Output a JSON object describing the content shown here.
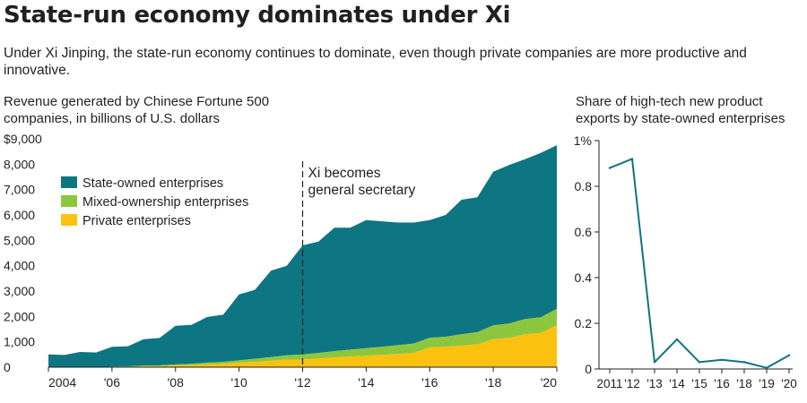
{
  "header": {
    "title": "State-run economy dominates under Xi",
    "subtitle": "Under Xi Jinping, the state-run economy continues to dominate, even though private companies are more productive and innovative."
  },
  "colors": {
    "state": "#0e7582",
    "mixed": "#8cc63f",
    "private": "#fdc20f",
    "line": "#0e7582"
  },
  "chart_data": [
    {
      "type": "area",
      "title": "Revenue generated by Chinese Fortune 500 companies, in billions of U.S. dollars",
      "stacked": true,
      "x_ticks": [
        "2004",
        "'06",
        "'08",
        "'10",
        "'12",
        "'14",
        "'16",
        "'18",
        "'20"
      ],
      "y_ticks": [
        "$9,000",
        "8,000",
        "7,000",
        "6,000",
        "5,000",
        "4,000",
        "3,000",
        "2,000",
        "1,000",
        "0"
      ],
      "ylim": [
        0,
        9000
      ],
      "xlim": [
        2004,
        2020
      ],
      "legend_placement": "top-left",
      "annotation": {
        "x": 2012,
        "lines": [
          "Xi becomes",
          "general secretary"
        ]
      },
      "x": [
        2004,
        2004.5,
        2005,
        2005.5,
        2006,
        2006.5,
        2007,
        2007.5,
        2008,
        2008.5,
        2009,
        2009.5,
        2010,
        2010.5,
        2011,
        2011.5,
        2012,
        2012.5,
        2013,
        2013.5,
        2014,
        2014.5,
        2015,
        2015.5,
        2016,
        2016.5,
        2017,
        2017.5,
        2018,
        2018.5,
        2019,
        2019.5,
        2020
      ],
      "series": [
        {
          "name": "Private enterprises",
          "values": [
            0,
            0,
            0,
            0,
            10,
            15,
            30,
            40,
            70,
            80,
            110,
            130,
            180,
            210,
            250,
            300,
            300,
            340,
            380,
            420,
            450,
            480,
            520,
            560,
            780,
            800,
            850,
            900,
            1100,
            1150,
            1300,
            1350,
            1650
          ]
        },
        {
          "name": "Mixed-ownership enterprises",
          "values": [
            0,
            0,
            0,
            10,
            10,
            20,
            30,
            30,
            40,
            50,
            70,
            80,
            90,
            120,
            150,
            170,
            200,
            220,
            250,
            270,
            300,
            320,
            350,
            370,
            380,
            400,
            450,
            480,
            550,
            570,
            600,
            620,
            650
          ]
        },
        {
          "name": "State-owned enterprises",
          "values": [
            500,
            480,
            600,
            570,
            780,
            790,
            1040,
            1080,
            1520,
            1540,
            1800,
            1860,
            2600,
            2720,
            3400,
            3530,
            4300,
            4390,
            4870,
            4810,
            5050,
            4950,
            4830,
            4770,
            4640,
            4800,
            5300,
            5320,
            6050,
            6250,
            6300,
            6480,
            6450
          ]
        }
      ]
    },
    {
      "type": "line",
      "title": "Share of high-tech new product exports by state-owned enterprises",
      "x_ticks": [
        "2011",
        "'12",
        "'13",
        "'14",
        "'15",
        "'16",
        "'18",
        "'19",
        "'20"
      ],
      "y_ticks": [
        "1%",
        "0.8",
        "0.6",
        "0.4",
        "0.2",
        "0"
      ],
      "ylim": [
        0,
        1
      ],
      "categories": [
        "2011",
        "2012",
        "2013",
        "2014",
        "2015",
        "2016",
        "2018",
        "2019",
        "2020"
      ],
      "values": [
        0.88,
        0.92,
        0.03,
        0.13,
        0.03,
        0.04,
        0.03,
        0.005,
        0.06
      ]
    }
  ]
}
